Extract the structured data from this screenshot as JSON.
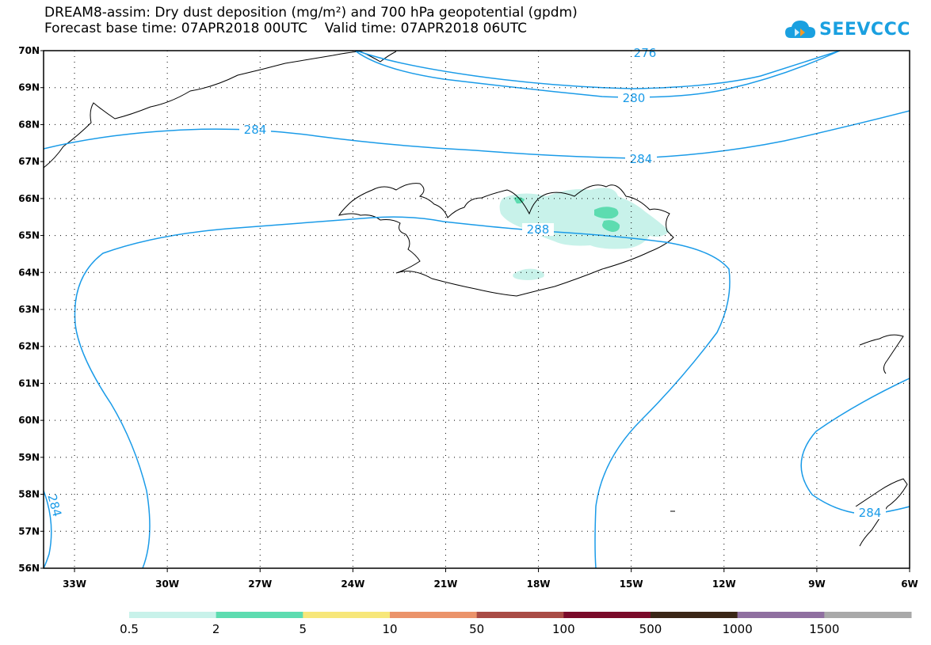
{
  "title": {
    "line1": "DREAM8-assim: Dry dust deposition (mg/m²) and 700 hPa geopotential (gpdm)",
    "line2": "Forecast base time: 07APR2018 00UTC    Valid time: 07APR2018 06UTC"
  },
  "logo": {
    "text": "SEEVCCC",
    "icon": "cloud-logo-icon",
    "color": "#1aa0e0"
  },
  "map": {
    "lat_labels": [
      "70N",
      "69N",
      "68N",
      "67N",
      "66N",
      "65N",
      "64N",
      "63N",
      "62N",
      "61N",
      "60N",
      "59N",
      "58N",
      "57N",
      "56N"
    ],
    "lon_labels": [
      "33W",
      "30W",
      "27W",
      "24W",
      "21W",
      "18W",
      "15W",
      "12W",
      "9W",
      "6W"
    ],
    "contour_labels": [
      "276",
      "280",
      "284",
      "284",
      "288",
      "284",
      "284"
    ],
    "contour_color": "#1a9be8"
  },
  "colorbar": {
    "labels": [
      "0.5",
      "2",
      "5",
      "10",
      "50",
      "100",
      "500",
      "1000",
      "1500"
    ],
    "colors": [
      "#c8f2ea",
      "#5ddcb0",
      "#f7e77a",
      "#eb936a",
      "#a94b45",
      "#7a0a2a",
      "#3a2616",
      "#8f6fa0",
      "#a9a9a9"
    ]
  },
  "dust_colors": {
    "light": "#c8f2ea",
    "medium": "#5ddcb0"
  }
}
